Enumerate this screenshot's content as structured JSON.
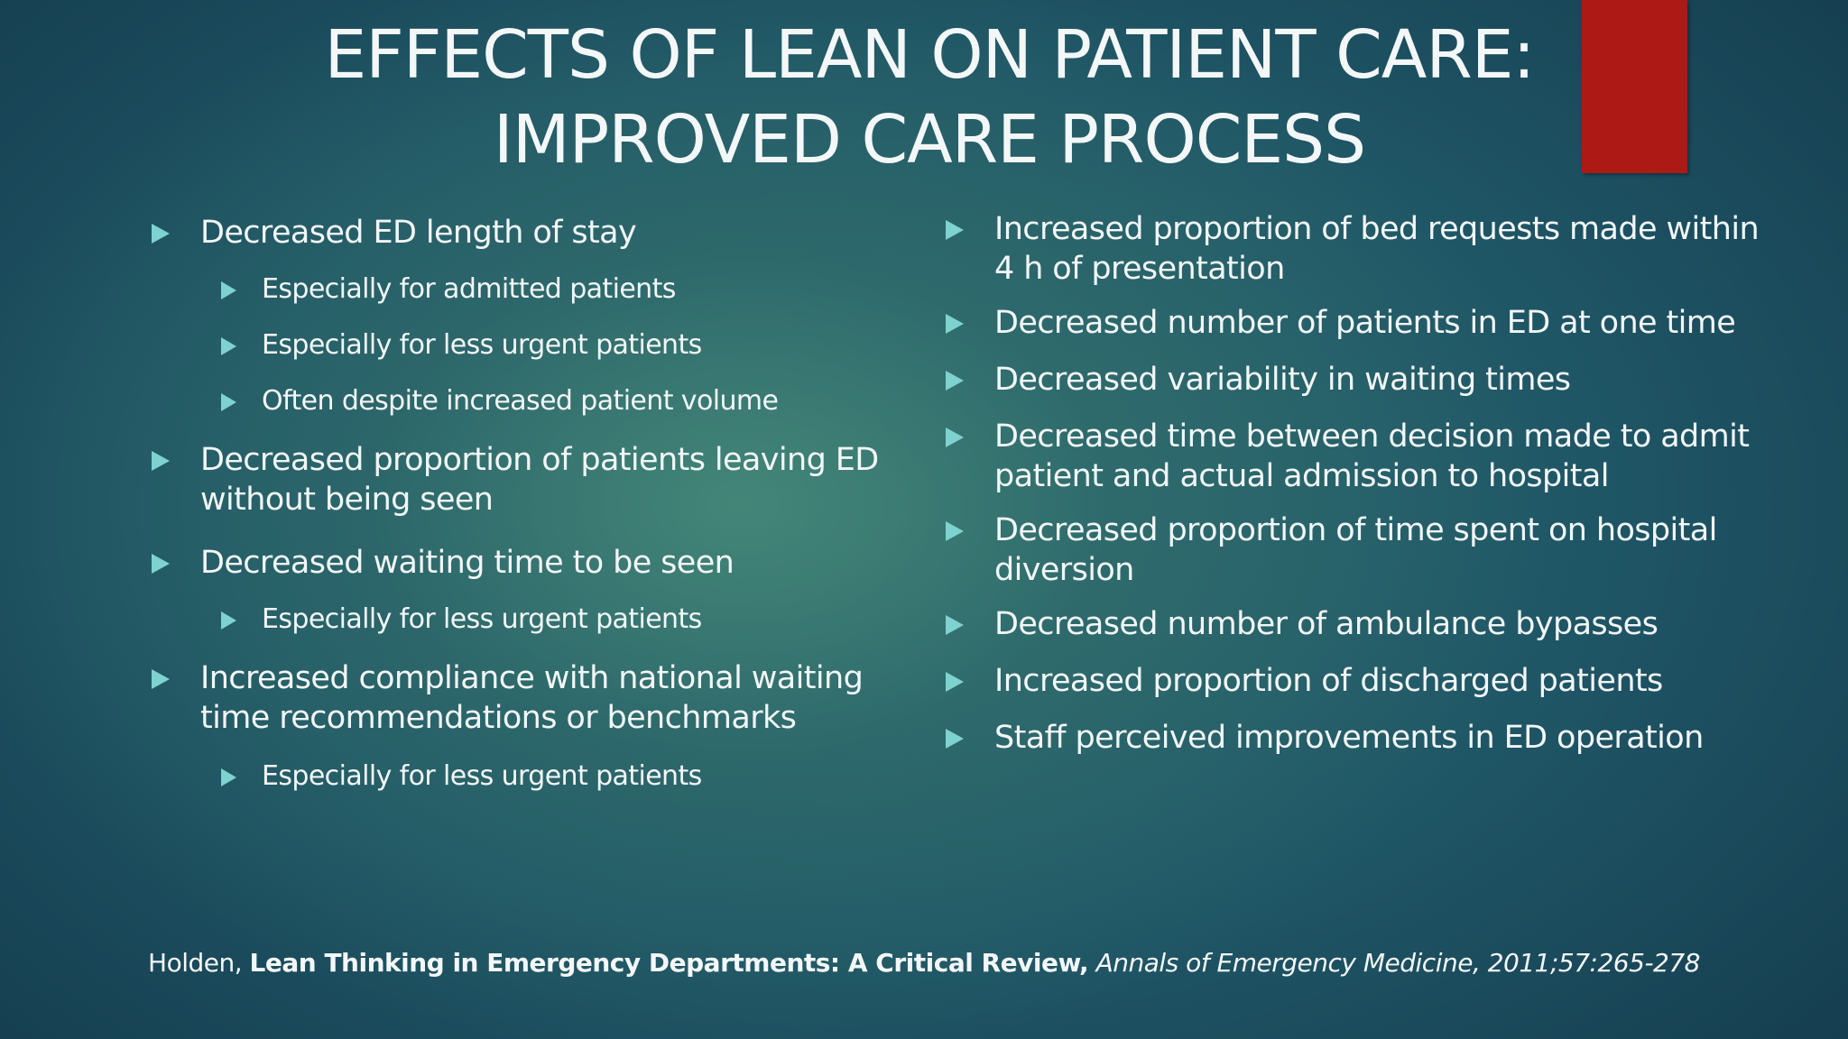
{
  "slide": {
    "title_line1": "EFFECTS OF LEAN ON PATIENT CARE:",
    "title_line2": "IMPROVED CARE PROCESS",
    "accent_color": "#ad1a16",
    "bullet_color": "#7ed2cf",
    "bullet_icon": "triangle-right-icon"
  },
  "left_column": [
    {
      "level": 1,
      "text": "Decreased ED length of stay"
    },
    {
      "level": 2,
      "text": "Especially for admitted patients"
    },
    {
      "level": 2,
      "text": "Especially for less urgent patients"
    },
    {
      "level": 2,
      "text": "Often despite increased patient volume"
    },
    {
      "level": 1,
      "text": "Decreased proportion of patients leaving ED without being seen"
    },
    {
      "level": 1,
      "text": "Decreased waiting time to be seen"
    },
    {
      "level": 2,
      "text": "Especially for less urgent patients"
    },
    {
      "level": 1,
      "text": "Increased compliance with national waiting time recommendations or benchmarks"
    },
    {
      "level": 2,
      "text": "Especially for less urgent patients"
    }
  ],
  "right_column": [
    {
      "level": 1,
      "text": "Increased proportion of bed requests made within 4 h of presentation"
    },
    {
      "level": 1,
      "text": "Decreased number of patients in ED at one time"
    },
    {
      "level": 1,
      "text": "Decreased variability in waiting times"
    },
    {
      "level": 1,
      "text": "Decreased time between decision made to admit patient and actual admission to hospital"
    },
    {
      "level": 1,
      "text": "Decreased proportion of time spent on hospital diversion"
    },
    {
      "level": 1,
      "text": "Decreased number of ambulance bypasses"
    },
    {
      "level": 1,
      "text": "Increased proportion of discharged patients"
    },
    {
      "level": 1,
      "text": "Staff perceived improvements in ED operation"
    }
  ],
  "citation": {
    "author": "Holden,",
    "title": "Lean Thinking in Emergency Departments: A Critical Review,",
    "journal": "Annals of Emergency Medicine, 2011;57:265-278"
  }
}
